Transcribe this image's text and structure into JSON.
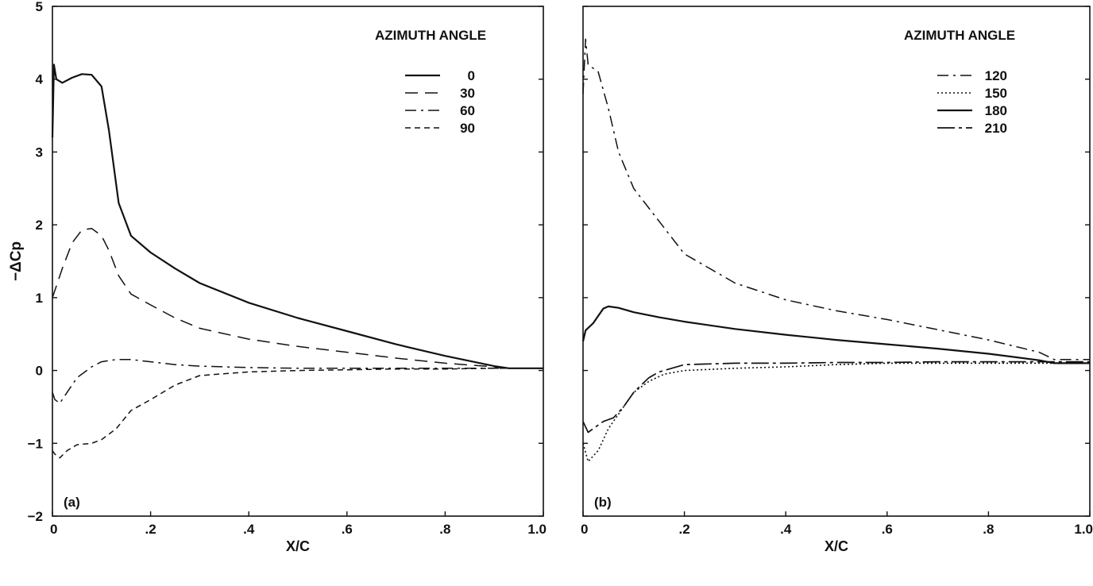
{
  "chart_data": [
    {
      "panel_label": "(a)",
      "type": "line",
      "xlabel": "X/C",
      "ylabel": "−ΔCp",
      "xlim": [
        0,
        1.0
      ],
      "ylim": [
        -2,
        5
      ],
      "x_ticks": [
        0,
        0.2,
        0.4,
        0.6,
        0.8,
        1.0
      ],
      "x_tick_labels": [
        "0",
        ".2",
        ".4",
        ".6",
        ".8",
        "1.0"
      ],
      "y_ticks": [
        -2,
        -1,
        0,
        1,
        2,
        3,
        4,
        5
      ],
      "y_tick_labels": [
        "−2",
        "−1",
        "0",
        "1",
        "2",
        "3",
        "4",
        "5"
      ],
      "legend_title": "AZIMUTH ANGLE",
      "legend_position": "top-right",
      "grid": false,
      "series": [
        {
          "name": "0",
          "style": "solid",
          "x": [
            0,
            0.003,
            0.008,
            0.02,
            0.04,
            0.06,
            0.08,
            0.1,
            0.115,
            0.135,
            0.16,
            0.2,
            0.25,
            0.3,
            0.4,
            0.5,
            0.6,
            0.7,
            0.8,
            0.9,
            0.93,
            1.0
          ],
          "y": [
            3.2,
            4.2,
            4.0,
            3.95,
            4.02,
            4.07,
            4.06,
            3.9,
            3.3,
            2.3,
            1.85,
            1.62,
            1.4,
            1.2,
            0.93,
            0.72,
            0.54,
            0.36,
            0.2,
            0.06,
            0.03,
            0.03
          ]
        },
        {
          "name": "30",
          "style": "dashed",
          "x": [
            0,
            0.02,
            0.04,
            0.06,
            0.08,
            0.1,
            0.115,
            0.135,
            0.16,
            0.2,
            0.25,
            0.3,
            0.4,
            0.5,
            0.6,
            0.7,
            0.8,
            0.9,
            0.93,
            1.0
          ],
          "y": [
            1.0,
            1.4,
            1.75,
            1.93,
            1.95,
            1.85,
            1.65,
            1.3,
            1.05,
            0.9,
            0.72,
            0.58,
            0.43,
            0.33,
            0.25,
            0.17,
            0.1,
            0.05,
            0.03,
            0.03
          ]
        },
        {
          "name": "60",
          "style": "dash-dot",
          "x": [
            0,
            0.005,
            0.015,
            0.03,
            0.05,
            0.08,
            0.1,
            0.13,
            0.16,
            0.2,
            0.25,
            0.3,
            0.4,
            0.5,
            0.6,
            0.7,
            0.8,
            0.9,
            1.0
          ],
          "y": [
            -0.3,
            -0.4,
            -0.45,
            -0.3,
            -0.1,
            0.05,
            0.12,
            0.15,
            0.15,
            0.12,
            0.08,
            0.06,
            0.04,
            0.03,
            0.03,
            0.03,
            0.03,
            0.03,
            0.03
          ]
        },
        {
          "name": "90",
          "style": "dotted-dash",
          "x": [
            0,
            0.005,
            0.015,
            0.03,
            0.05,
            0.08,
            0.1,
            0.13,
            0.16,
            0.2,
            0.25,
            0.3,
            0.4,
            0.5,
            0.6,
            0.7,
            0.8,
            0.9,
            1.0
          ],
          "y": [
            -1.1,
            -1.15,
            -1.2,
            -1.1,
            -1.02,
            -1.0,
            -0.95,
            -0.8,
            -0.55,
            -0.4,
            -0.2,
            -0.07,
            -0.02,
            0.0,
            0.01,
            0.02,
            0.02,
            0.03,
            0.03
          ]
        }
      ]
    },
    {
      "panel_label": "(b)",
      "type": "line",
      "xlabel": "X/C",
      "ylabel": "",
      "xlim": [
        0,
        1.0
      ],
      "ylim": [
        -2,
        5
      ],
      "x_ticks": [
        0,
        0.2,
        0.4,
        0.6,
        0.8,
        1.0
      ],
      "x_tick_labels": [
        "0",
        ".2",
        ".4",
        ".6",
        ".8",
        "1.0"
      ],
      "y_ticks": [
        -2,
        -1,
        0,
        1,
        2,
        3,
        4,
        5
      ],
      "y_tick_labels": [],
      "legend_title": "AZIMUTH ANGLE",
      "legend_position": "top-right",
      "grid": false,
      "series": [
        {
          "name": "120",
          "style": "dash-dot",
          "x": [
            0,
            0.005,
            0.01,
            0.02,
            0.03,
            0.05,
            0.07,
            0.1,
            0.15,
            0.2,
            0.3,
            0.4,
            0.5,
            0.6,
            0.7,
            0.8,
            0.9,
            0.93,
            1.0
          ],
          "y": [
            3.8,
            4.55,
            4.2,
            4.15,
            4.1,
            3.6,
            3.0,
            2.5,
            2.05,
            1.6,
            1.2,
            0.97,
            0.82,
            0.7,
            0.56,
            0.42,
            0.25,
            0.15,
            0.15
          ]
        },
        {
          "name": "150",
          "style": "dotted",
          "x": [
            0,
            0.01,
            0.03,
            0.05,
            0.08,
            0.1,
            0.13,
            0.16,
            0.2,
            0.3,
            0.4,
            0.5,
            0.6,
            0.7,
            0.8,
            0.9,
            1.0
          ],
          "y": [
            -1.0,
            -1.25,
            -1.1,
            -0.8,
            -0.5,
            -0.3,
            -0.15,
            -0.05,
            0.0,
            0.03,
            0.05,
            0.08,
            0.1,
            0.1,
            0.1,
            0.1,
            0.1
          ]
        },
        {
          "name": "180",
          "style": "solid",
          "x": [
            0,
            0.005,
            0.02,
            0.04,
            0.05,
            0.07,
            0.1,
            0.15,
            0.2,
            0.3,
            0.4,
            0.5,
            0.6,
            0.7,
            0.8,
            0.9,
            0.93,
            1.0
          ],
          "y": [
            0.4,
            0.55,
            0.65,
            0.85,
            0.88,
            0.86,
            0.8,
            0.73,
            0.67,
            0.57,
            0.49,
            0.42,
            0.36,
            0.3,
            0.23,
            0.14,
            0.1,
            0.1
          ]
        },
        {
          "name": "210",
          "style": "long-dash-dot",
          "x": [
            0,
            0.01,
            0.02,
            0.04,
            0.06,
            0.08,
            0.1,
            0.13,
            0.15,
            0.2,
            0.3,
            0.4,
            0.5,
            0.6,
            0.7,
            0.8,
            0.9,
            1.0
          ],
          "y": [
            -0.7,
            -0.85,
            -0.8,
            -0.7,
            -0.65,
            -0.5,
            -0.3,
            -0.1,
            -0.02,
            0.08,
            0.1,
            0.1,
            0.11,
            0.11,
            0.12,
            0.12,
            0.12,
            0.12
          ]
        }
      ]
    }
  ]
}
